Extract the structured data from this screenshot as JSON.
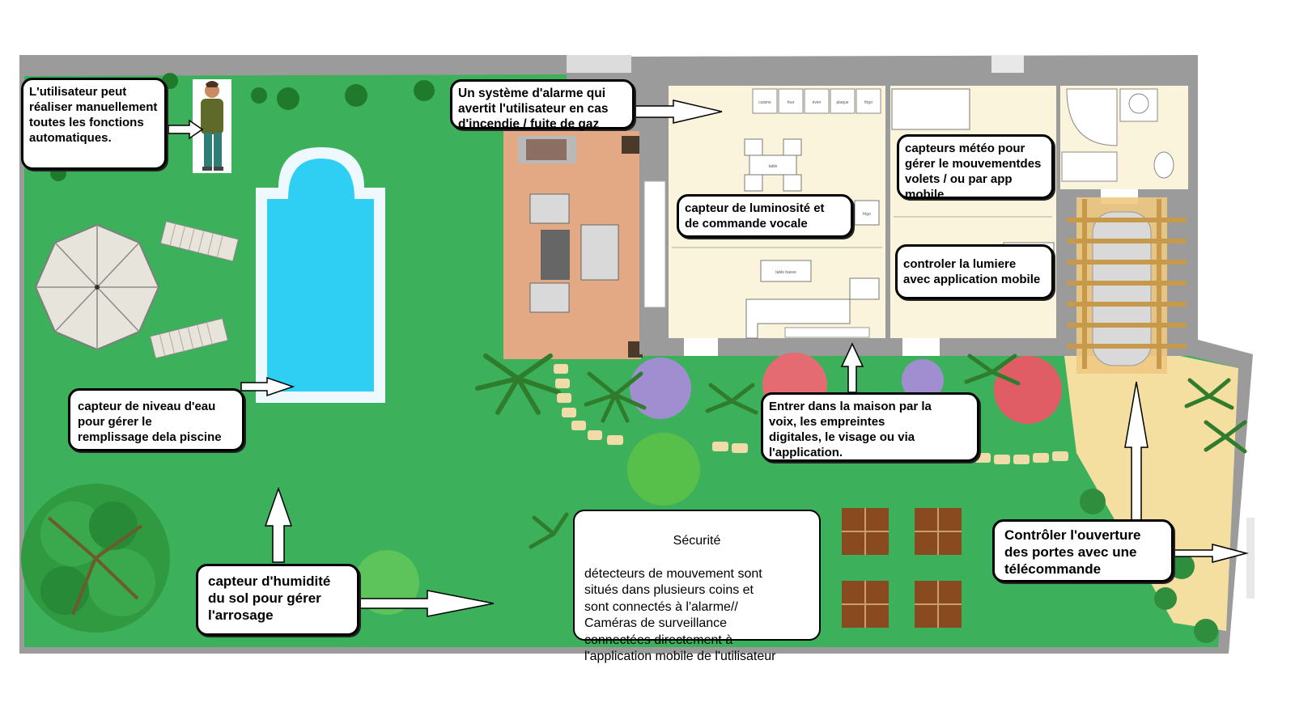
{
  "callouts": {
    "user_manual": "L'utilisateur peut\nréaliser manuellement\ntoutes les fonctions\nautomatiques.",
    "alarm": "Un système d'alarme qui\navertit l'utilisateur en cas\nd'incendie / fuite de gaz",
    "weather": "capteurs météo pour\ngérer le mouvementdes\nvolets / ou par app\nmobile",
    "luminosity": "capteur de luminosité et\nde commande vocale",
    "light_control": "controler la lumiere\navec application mobile",
    "water_level": "capteur de niveau d'eau\npour gérer le\nremplissage dela piscine",
    "entry": "Entrer dans la maison par la\nvoix, les empreintes\ndigitales, le visage ou via\nl'application.",
    "humidity": "capteur d'humidité\ndu sol pour gérer\nl'arrosage",
    "security_title": "Sécurité",
    "security_body": "détecteurs de mouvement sont\nsitués dans plusieurs coins et\nsont connectés à l'alarme//\nCaméras de surveillance\nconnectées directement à\nl'application mobile de l'utilisateur",
    "gates": "Contrôler l'ouverture\ndes portes avec une\ntélécommande"
  },
  "house_labels": {
    "table": "table",
    "sofa": "sofa",
    "coffee_table": "table basse",
    "fridge": "frigo",
    "counter": "plan",
    "cabinet_1": "cuisine",
    "cabinet_2": "four",
    "cabinet_3": "évier",
    "cabinet_4": "plaque",
    "cabinet_5": "frigo"
  },
  "colors": {
    "lawn": "#3cb05a",
    "lawn_dark": "#2f9a4b",
    "wall": "#9b9b9b",
    "house_floor": "#fbf4dc",
    "terrace": "#e3a985",
    "pool": "#2fcff3",
    "pool_border": "#eef8ff",
    "path": "#f0dca8",
    "driveway": "#f5dfa0",
    "pergola": "#eec982"
  }
}
